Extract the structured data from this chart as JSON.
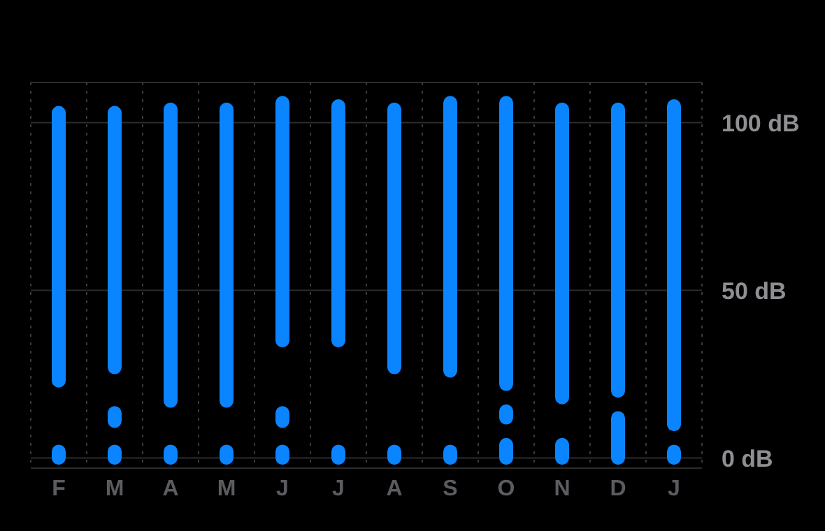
{
  "chart_data": {
    "type": "bar",
    "categories": [
      "F",
      "M",
      "A",
      "M",
      "J",
      "J",
      "A",
      "S",
      "O",
      "N",
      "D",
      "J"
    ],
    "series": [
      {
        "color": "#0a84ff",
        "base": [
          21,
          25,
          15,
          15,
          33,
          33,
          25,
          24,
          20,
          16,
          18,
          8
        ],
        "values": [
          84,
          80,
          91,
          91,
          75,
          74,
          81,
          84,
          88,
          90,
          88,
          99
        ]
      },
      {
        "color": "#0a84ff",
        "base": [
          null,
          9,
          null,
          null,
          9,
          null,
          null,
          null,
          10,
          null,
          null,
          null
        ],
        "values": [
          null,
          6.5,
          null,
          null,
          6.5,
          null,
          null,
          null,
          6,
          null,
          null,
          null
        ]
      },
      {
        "color": "#0a84ff",
        "base": [
          -2,
          -2,
          -2,
          -2,
          -2,
          -2,
          -2,
          -2,
          -2,
          -2,
          -2,
          -2
        ],
        "values": [
          6,
          6,
          6,
          6,
          6,
          6,
          6,
          6,
          8,
          8,
          16,
          6
        ]
      }
    ],
    "ylim": [
      -3,
      112
    ],
    "yticks": [
      {
        "value": 0,
        "label": "0 dB"
      },
      {
        "value": 50,
        "label": "50 dB"
      },
      {
        "value": 100,
        "label": "100 dB"
      }
    ],
    "grid": true
  }
}
